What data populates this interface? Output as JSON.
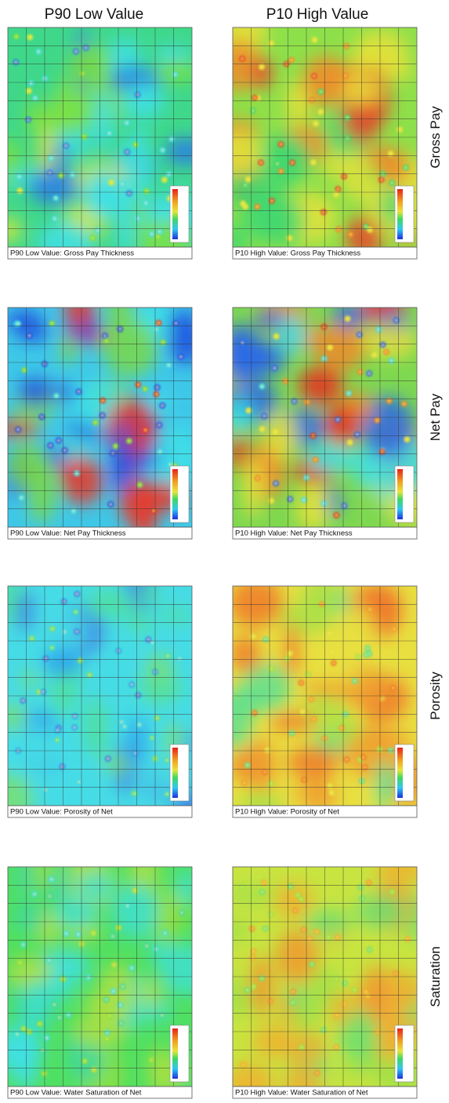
{
  "column_headers": [
    "P90 Low Value",
    "P10 High Value"
  ],
  "rows": [
    {
      "label": "Gross Pay",
      "panels": [
        {
          "caption": "P90 Low Value: Gross Pay Thickness"
        },
        {
          "caption": "P10 High Value: Gross Pay Thickness"
        }
      ]
    },
    {
      "label": "Net Pay",
      "panels": [
        {
          "caption": "P90 Low Value: Net Pay Thickness"
        },
        {
          "caption": "P10 High Value: Net Pay Thickness"
        }
      ]
    },
    {
      "label": "Porosity",
      "panels": [
        {
          "caption": "P90 Low Value: Porosity of Net"
        },
        {
          "caption": "P10 High Value: Porosity of Net"
        }
      ]
    },
    {
      "label": "Saturation",
      "panels": [
        {
          "caption": "P90 Low Value: Water Saturation of Net"
        },
        {
          "caption": "P10 High Value: Water Saturation of Net"
        }
      ]
    }
  ]
}
